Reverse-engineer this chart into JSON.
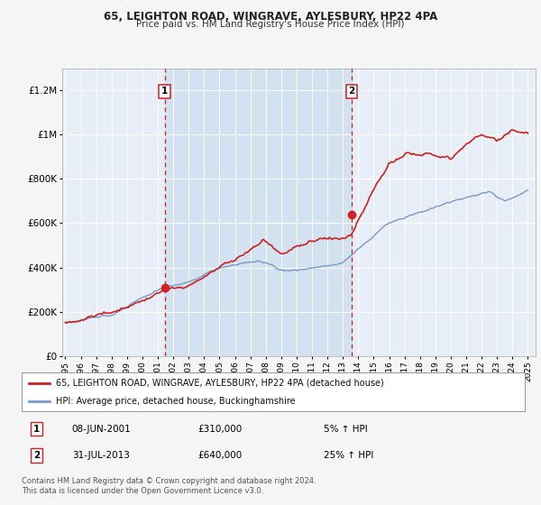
{
  "title1": "65, LEIGHTON ROAD, WINGRAVE, AYLESBURY, HP22 4PA",
  "title2": "Price paid vs. HM Land Registry's House Price Index (HPI)",
  "ylim": [
    0,
    1300000
  ],
  "xlim_start": 1994.8,
  "xlim_end": 2025.5,
  "background_color": "#f5f5f5",
  "plot_bg": "#e8eef8",
  "grid_color": "#ffffff",
  "red_line_color": "#cc2222",
  "blue_line_color": "#7799cc",
  "span_color": "#d0e0f0",
  "sale1_x": 2001.44,
  "sale1_y": 310000,
  "sale2_x": 2013.58,
  "sale2_y": 640000,
  "legend_label1": "65, LEIGHTON ROAD, WINGRAVE, AYLESBURY, HP22 4PA (detached house)",
  "legend_label2": "HPI: Average price, detached house, Buckinghamshire",
  "note1_date": "08-JUN-2001",
  "note1_price": "£310,000",
  "note1_hpi": "5% ↑ HPI",
  "note2_date": "31-JUL-2013",
  "note2_price": "£640,000",
  "note2_hpi": "25% ↑ HPI",
  "footer": "Contains HM Land Registry data © Crown copyright and database right 2024.\nThis data is licensed under the Open Government Licence v3.0.",
  "yticks": [
    0,
    200000,
    400000,
    600000,
    800000,
    1000000,
    1200000
  ],
  "ytick_labels": [
    "£0",
    "£200K",
    "£400K",
    "£600K",
    "£800K",
    "£1M",
    "£1.2M"
  ],
  "xticks": [
    1995,
    1996,
    1997,
    1998,
    1999,
    2000,
    2001,
    2002,
    2003,
    2004,
    2005,
    2006,
    2007,
    2008,
    2009,
    2010,
    2011,
    2012,
    2013,
    2014,
    2015,
    2016,
    2017,
    2018,
    2019,
    2020,
    2021,
    2022,
    2023,
    2024,
    2025
  ]
}
